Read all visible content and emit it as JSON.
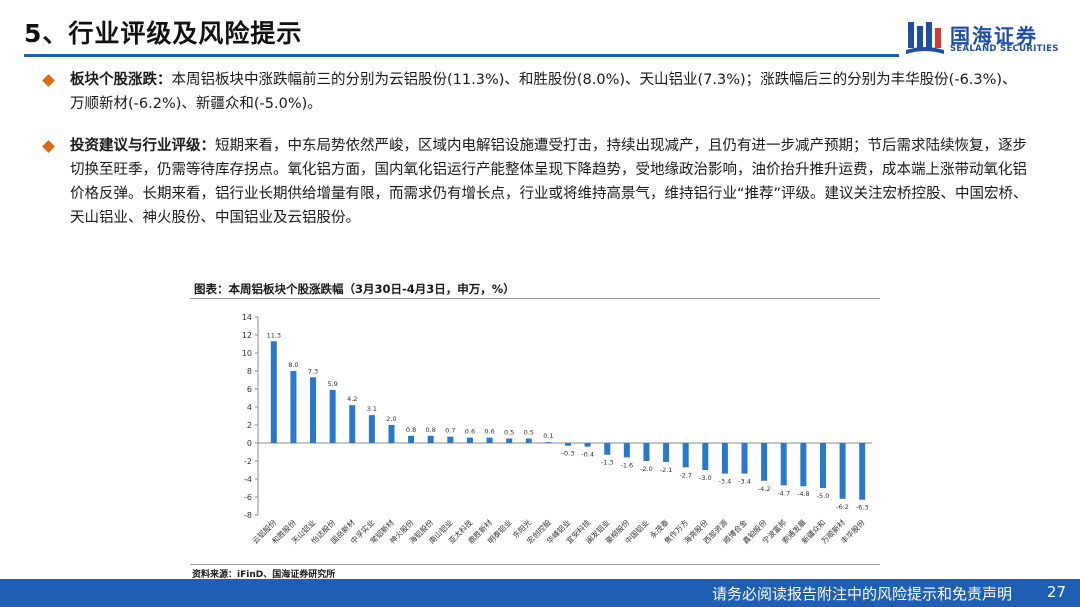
{
  "header": {
    "title": "5、行业评级及风险提示"
  },
  "logo": {
    "cn": "国海证券",
    "en": "SEALAND SECURITIES"
  },
  "bullets": [
    {
      "lead": "板块个股涨跌：",
      "text": "本周铝板块中涨跌幅前三的分别为云铝股份(11.3%)、和胜股份(8.0%)、天山铝业(7.3%)；涨跌幅后三的分别为丰华股份(-6.3%)、万顺新材(-6.2%)、新疆众和(-5.0%)。"
    },
    {
      "lead": "投资建议与行业评级：",
      "text": "短期来看，中东局势依然严峻，区域内电解铝设施遭受打击，持续出现减产，且仍有进一步减产预期；节后需求陆续恢复，逐步切换至旺季，仍需等待库存拐点。氧化铝方面，国内氧化铝运行产能整体呈现下降趋势，受地缘政治影响，油价抬升推升运费，成本端上涨带动氧化铝价格反弹。长期来看，铝行业长期供给增量有限，而需求仍有增长点，行业或将维持高景气，维持铝行业“推荐”评级。建议关注宏桥控股、中国宏桥、天山铝业、神火股份、中国铝业及云铝股份。"
    }
  ],
  "chart_title": "图表：本周铝板块个股涨跌幅（3月30日-4月3日，申万，%）",
  "source": "资料来源：iFinD、国海证券研究所",
  "footer": {
    "text": "请务必阅读报告附注中的风险提示和免责声明",
    "page": "27"
  },
  "colors": {
    "accent": "#1f5fb3",
    "bar": "#2a78c9",
    "bullet": "#d96a12"
  },
  "chart_data": {
    "type": "bar",
    "categories": [
      "云铝股份",
      "和胜股份",
      "天山铝业",
      "怡达股份",
      "国岳新材",
      "中孚实业",
      "常铝新材",
      "神火股份",
      "海铝股份",
      "南山铝业",
      "亚太科技",
      "鼎胜新材",
      "明泰铝业",
      "东阳光",
      "宏创控股",
      "华峰铝业",
      "宜安科技",
      "闽发铝业",
      "豪柳股份",
      "中国铝业",
      "永茂泰",
      "焦作万方",
      "海亮股份",
      "西部资源",
      "顺博合金",
      "鑫铂股份",
      "宁波富邦",
      "索通发展",
      "新疆众和",
      "万顺新材",
      "丰华股份"
    ],
    "values": [
      11.3,
      8.0,
      7.3,
      5.9,
      4.2,
      3.1,
      2.0,
      0.8,
      0.8,
      0.7,
      0.6,
      0.6,
      0.5,
      0.5,
      0.1,
      -0.3,
      -0.4,
      -1.3,
      -1.6,
      -2.0,
      -2.1,
      -2.7,
      -3.0,
      -3.4,
      -3.4,
      -4.2,
      -4.7,
      -4.8,
      -5.0,
      -6.2,
      -6.3
    ],
    "data_labels": [
      "11.3",
      "8.0",
      "7.3",
      "5.9",
      "4.2",
      "3.1",
      "2.0",
      "0.8",
      "0.8",
      "0.7",
      "0.6",
      "0.6",
      "0.5",
      "0.5",
      "0.1",
      "-0.3",
      "-0.4",
      "-1.3",
      "-1.6",
      "-2.0",
      "-2.1",
      "-2.7",
      "-3.0",
      "-3.4",
      "-3.4",
      "-4.2",
      "-4.7",
      "-4.8",
      "-5.0",
      "-6.2",
      "-6.3"
    ],
    "yticks": [
      "14",
      "12",
      "10",
      "8",
      "6",
      "4",
      "2",
      "0",
      "-2",
      "-4",
      "-6",
      "-8"
    ],
    "ylim": [
      -8,
      14
    ],
    "grid": false,
    "legend": "none"
  }
}
